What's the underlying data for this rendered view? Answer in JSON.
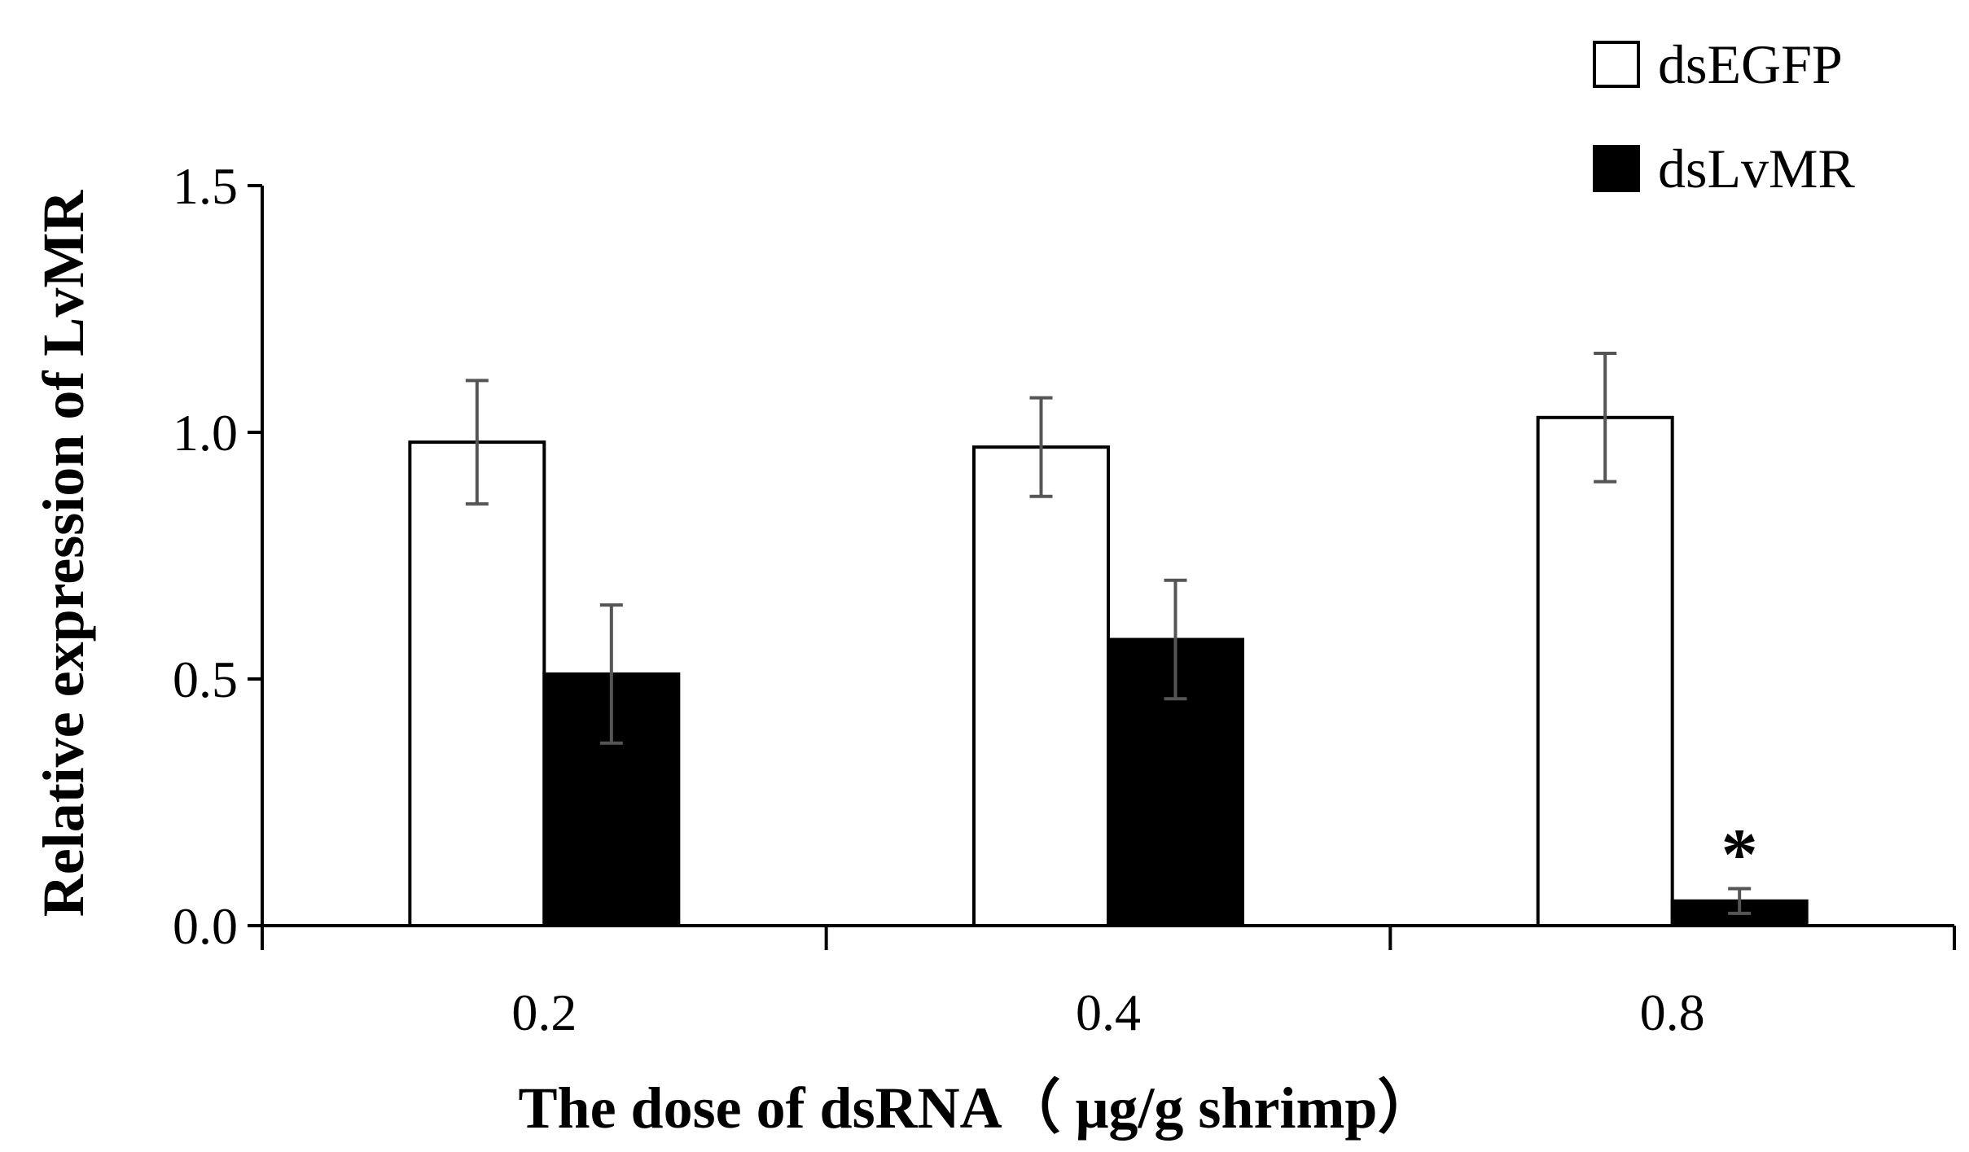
{
  "chart_data": {
    "type": "bar",
    "title": "",
    "xlabel": "The dose  of  dsRNA（ μg/g shrimp）",
    "ylabel": "Relative  expression of  LvMR",
    "categories": [
      "0.2",
      "0.4",
      "0.8"
    ],
    "ylim": [
      0,
      1.5
    ],
    "yticks": [
      0.0,
      0.5,
      1.0,
      1.5
    ],
    "ytick_labels": [
      "0.0",
      "0.5",
      "1.0",
      "1.5"
    ],
    "grid": false,
    "legend_position": "top-right",
    "series": [
      {
        "name": "dsEGFP",
        "color": "#ffffff",
        "values": [
          0.98,
          0.97,
          1.03
        ],
        "errors": [
          0.125,
          0.1,
          0.13
        ]
      },
      {
        "name": "dsLvMR",
        "color": "#000000",
        "values": [
          0.51,
          0.58,
          0.05
        ],
        "errors": [
          0.14,
          0.12,
          0.025
        ]
      }
    ],
    "annotations": [
      {
        "text": "*",
        "category": "0.8",
        "series": "dsLvMR"
      }
    ]
  }
}
